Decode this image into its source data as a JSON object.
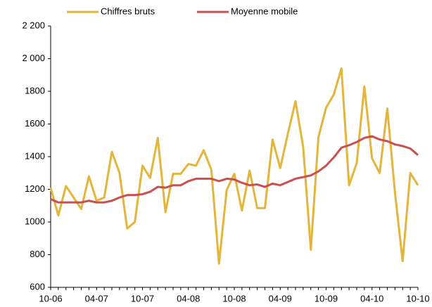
{
  "chart_data": {
    "type": "line",
    "categories": [
      "10-06",
      null,
      null,
      null,
      null,
      null,
      "04-07",
      null,
      null,
      null,
      null,
      null,
      "10-07",
      null,
      null,
      null,
      null,
      null,
      "04-08",
      null,
      null,
      null,
      null,
      null,
      "10-08",
      null,
      null,
      null,
      null,
      null,
      "04-09",
      null,
      null,
      null,
      null,
      null,
      "10-09",
      null,
      null,
      null,
      null,
      null,
      "04-10",
      null,
      null,
      null,
      null,
      null,
      "10-10"
    ],
    "series": [
      {
        "name": "Chiffres bruts",
        "color": "#e3b53a",
        "values": [
          1210,
          1040,
          1220,
          1150,
          1080,
          1280,
          1130,
          1150,
          1430,
          1300,
          960,
          1000,
          1345,
          1270,
          1515,
          1060,
          1295,
          1295,
          1355,
          1345,
          1440,
          1320,
          745,
          1195,
          1295,
          1070,
          1315,
          1085,
          1085,
          1505,
          1330,
          1540,
          1740,
          1460,
          830,
          1520,
          1700,
          1780,
          1940,
          1225,
          1360,
          1830,
          1390,
          1300,
          1695,
          1180,
          760,
          1300,
          1225
        ]
      },
      {
        "name": "Moyenne mobile",
        "color": "#c9504f",
        "values": [
          1140,
          1120,
          1120,
          1120,
          1120,
          1130,
          1120,
          1120,
          1130,
          1150,
          1165,
          1165,
          1170,
          1185,
          1215,
          1210,
          1225,
          1225,
          1250,
          1265,
          1265,
          1265,
          1250,
          1265,
          1260,
          1240,
          1225,
          1230,
          1215,
          1235,
          1225,
          1245,
          1265,
          1275,
          1285,
          1310,
          1345,
          1395,
          1455,
          1470,
          1490,
          1515,
          1525,
          1505,
          1495,
          1475,
          1465,
          1450,
          1410
        ]
      }
    ],
    "ylim": [
      600,
      2200
    ],
    "yticks": [
      600,
      800,
      1000,
      1200,
      1400,
      1600,
      1800,
      {
        "value": 2000,
        "label": "2 000"
      },
      {
        "value": 2200,
        "label": "2 200"
      }
    ],
    "grid": false
  }
}
